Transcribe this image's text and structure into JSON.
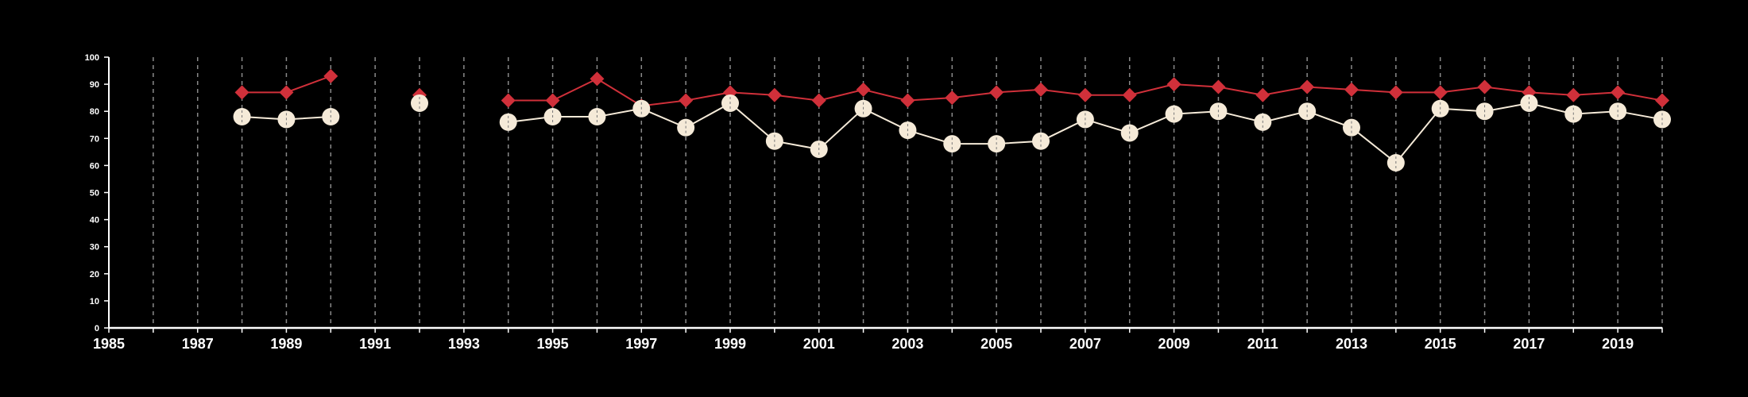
{
  "chart_data": {
    "type": "line",
    "title": "",
    "xlabel": "",
    "ylabel": "",
    "xlim": [
      1985,
      2020
    ],
    "ylim": [
      0,
      100
    ],
    "y_ticks": [
      0,
      10,
      20,
      30,
      40,
      50,
      60,
      70,
      80,
      90,
      100
    ],
    "x_tick_labels": [
      1985,
      1987,
      1989,
      1991,
      1993,
      1995,
      1997,
      1999,
      2001,
      2003,
      2005,
      2007,
      2009,
      2011,
      2013,
      2015,
      2017,
      2019
    ],
    "grid": "vertical dashed lines at each year",
    "legend": "none",
    "series": [
      {
        "color": "#d0303a",
        "marker": "diamond",
        "points": [
          {
            "x": 1988,
            "y": 87
          },
          {
            "x": 1989,
            "y": 87
          },
          {
            "x": 1990,
            "y": 93
          },
          {
            "x": 1992,
            "y": 86
          },
          {
            "x": 1994,
            "y": 84
          },
          {
            "x": 1995,
            "y": 84
          },
          {
            "x": 1996,
            "y": 92
          },
          {
            "x": 1997,
            "y": 82
          },
          {
            "x": 1998,
            "y": 84
          },
          {
            "x": 1999,
            "y": 87
          },
          {
            "x": 2000,
            "y": 86
          },
          {
            "x": 2001,
            "y": 84
          },
          {
            "x": 2002,
            "y": 88
          },
          {
            "x": 2003,
            "y": 84
          },
          {
            "x": 2004,
            "y": 85
          },
          {
            "x": 2005,
            "y": 87
          },
          {
            "x": 2006,
            "y": 88
          },
          {
            "x": 2007,
            "y": 86
          },
          {
            "x": 2008,
            "y": 86
          },
          {
            "x": 2009,
            "y": 90
          },
          {
            "x": 2010,
            "y": 89
          },
          {
            "x": 2011,
            "y": 86
          },
          {
            "x": 2012,
            "y": 89
          },
          {
            "x": 2013,
            "y": 88
          },
          {
            "x": 2014,
            "y": 87
          },
          {
            "x": 2015,
            "y": 87
          },
          {
            "x": 2016,
            "y": 89
          },
          {
            "x": 2017,
            "y": 87
          },
          {
            "x": 2018,
            "y": 86
          },
          {
            "x": 2019,
            "y": 87
          },
          {
            "x": 2020,
            "y": 84
          }
        ]
      },
      {
        "color": "#f5ead8",
        "marker": "circle",
        "points": [
          {
            "x": 1988,
            "y": 78
          },
          {
            "x": 1989,
            "y": 77
          },
          {
            "x": 1990,
            "y": 78
          },
          {
            "x": 1992,
            "y": 83
          },
          {
            "x": 1994,
            "y": 76
          },
          {
            "x": 1995,
            "y": 78
          },
          {
            "x": 1996,
            "y": 78
          },
          {
            "x": 1997,
            "y": 81
          },
          {
            "x": 1998,
            "y": 74
          },
          {
            "x": 1999,
            "y": 83
          },
          {
            "x": 2000,
            "y": 69
          },
          {
            "x": 2001,
            "y": 66
          },
          {
            "x": 2002,
            "y": 81
          },
          {
            "x": 2003,
            "y": 73
          },
          {
            "x": 2004,
            "y": 68
          },
          {
            "x": 2005,
            "y": 68
          },
          {
            "x": 2006,
            "y": 69
          },
          {
            "x": 2007,
            "y": 77
          },
          {
            "x": 2008,
            "y": 72
          },
          {
            "x": 2009,
            "y": 79
          },
          {
            "x": 2010,
            "y": 80
          },
          {
            "x": 2011,
            "y": 76
          },
          {
            "x": 2012,
            "y": 80
          },
          {
            "x": 2013,
            "y": 74
          },
          {
            "x": 2014,
            "y": 61
          },
          {
            "x": 2015,
            "y": 81
          },
          {
            "x": 2016,
            "y": 80
          },
          {
            "x": 2017,
            "y": 83
          },
          {
            "x": 2018,
            "y": 79
          },
          {
            "x": 2019,
            "y": 80
          },
          {
            "x": 2020,
            "y": 77
          }
        ]
      }
    ]
  }
}
